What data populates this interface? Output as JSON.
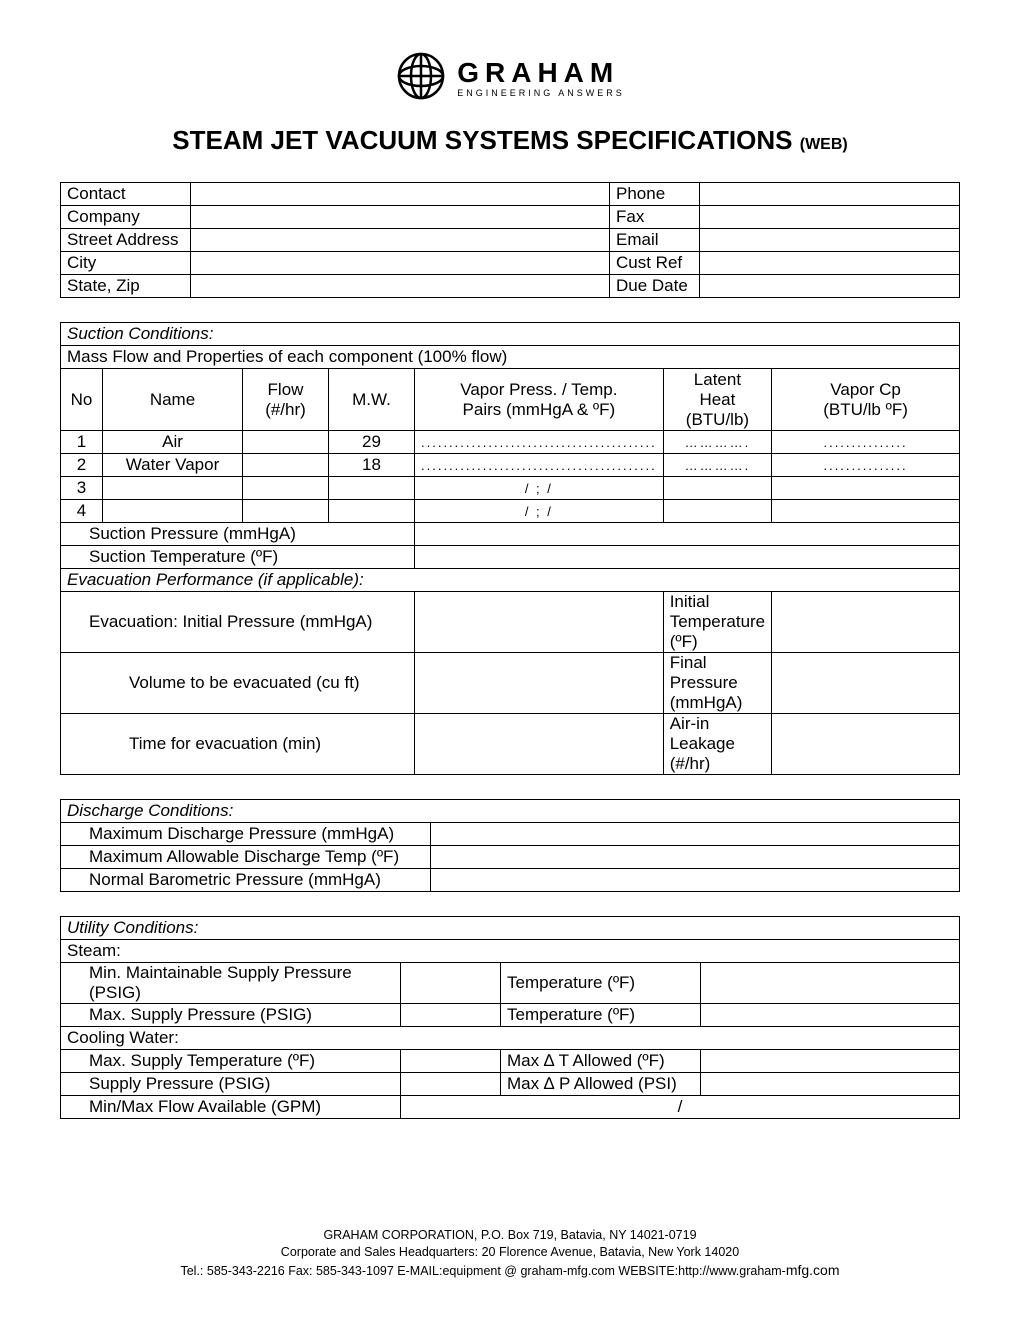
{
  "logo": {
    "brand": "GRAHAM",
    "tagline": "ENGINEERING  ANSWERS"
  },
  "title": "STEAM JET VACUUM SYSTEMS SPECIFICATIONS",
  "title_small": "(WEB)",
  "contact_block": {
    "left_labels": [
      "Contact",
      "Company",
      "Street Address",
      "City",
      "State, Zip"
    ],
    "right_labels": [
      "Phone",
      "Fax",
      "Email",
      "Cust Ref",
      "Due Date"
    ]
  },
  "suction": {
    "header": "Suction Conditions:",
    "subheader": "Mass Flow and Properties of each component (100% flow)",
    "cols": {
      "no": "No",
      "name": "Name",
      "flow": "Flow\n(#/hr)",
      "mw": "M.W.",
      "vp": "Vapor Press. / Temp.\nPairs (mmHgA & ºF)",
      "latent": "Latent\nHeat\n(BTU/lb)",
      "cp": "Vapor Cp\n(BTU/lb ºF)"
    },
    "rows": [
      {
        "no": "1",
        "name": "Air",
        "flow": "",
        "mw": "29",
        "vp": "..........................................",
        "latent": "………….",
        "cp": "..............."
      },
      {
        "no": "2",
        "name": "Water Vapor",
        "flow": "",
        "mw": "18",
        "vp": "..........................................",
        "latent": "………….",
        "cp": "..............."
      },
      {
        "no": "3",
        "name": "",
        "flow": "",
        "mw": "",
        "vp": "/     ;    /",
        "latent": "",
        "cp": ""
      },
      {
        "no": "4",
        "name": "",
        "flow": "",
        "mw": "",
        "vp": "/     ;    /",
        "latent": "",
        "cp": ""
      }
    ],
    "suction_pressure_label": "Suction Pressure  (mmHgA)",
    "suction_temperature_label": "Suction Temperature  (ºF)",
    "evac_header": "Evacuation Performance  (if applicable):",
    "evac_pairs": [
      {
        "l": "Evacuation: Initial Pressure  (mmHgA)",
        "r": "Initial Temperature  (ºF)"
      },
      {
        "l": "Volume to be evacuated  (cu ft)",
        "r": "Final Pressure  (mmHgA)"
      },
      {
        "l": "Time for evacuation  (min)",
        "r": "Air-in Leakage  (#/hr)"
      }
    ]
  },
  "discharge": {
    "header": "Discharge Conditions:",
    "rows": [
      "Maximum Discharge Pressure  (mmHgA)",
      "Maximum Allowable Discharge Temp (ºF)",
      "Normal Barometric Pressure  (mmHgA)"
    ]
  },
  "utility": {
    "header": "Utility Conditions:",
    "steam_label": "Steam:",
    "steam_rows": [
      {
        "l": "Min. Maintainable Supply Pressure (PSIG)",
        "r": "Temperature  (ºF)"
      },
      {
        "l": "Max. Supply Pressure  (PSIG)",
        "r": "Temperature  (ºF)"
      }
    ],
    "cw_label": "Cooling Water:",
    "cw_rows": [
      {
        "l": "Max. Supply Temperature  (ºF)",
        "r": "Max ∆ T Allowed (ºF)"
      },
      {
        "l": "Supply Pressure  (PSIG)",
        "r": "Max ∆ P Allowed (PSI)"
      }
    ],
    "flow_label": "Min/Max Flow Available  (GPM)",
    "flow_value": "/"
  },
  "footer": {
    "l1": "GRAHAM CORPORATION, P.O. Box 719, Batavia, NY 14021-0719",
    "l2": "Corporate and Sales Headquarters: 20 Florence Avenue, Batavia, New York 14020",
    "l3a": "Tel.: 585-343-2216 Fax: 585-343-1097 E-MAIL:equipment @ graham-mfg.com WEBSITE:http://www.graham-",
    "l3b": "mfg.com"
  }
}
